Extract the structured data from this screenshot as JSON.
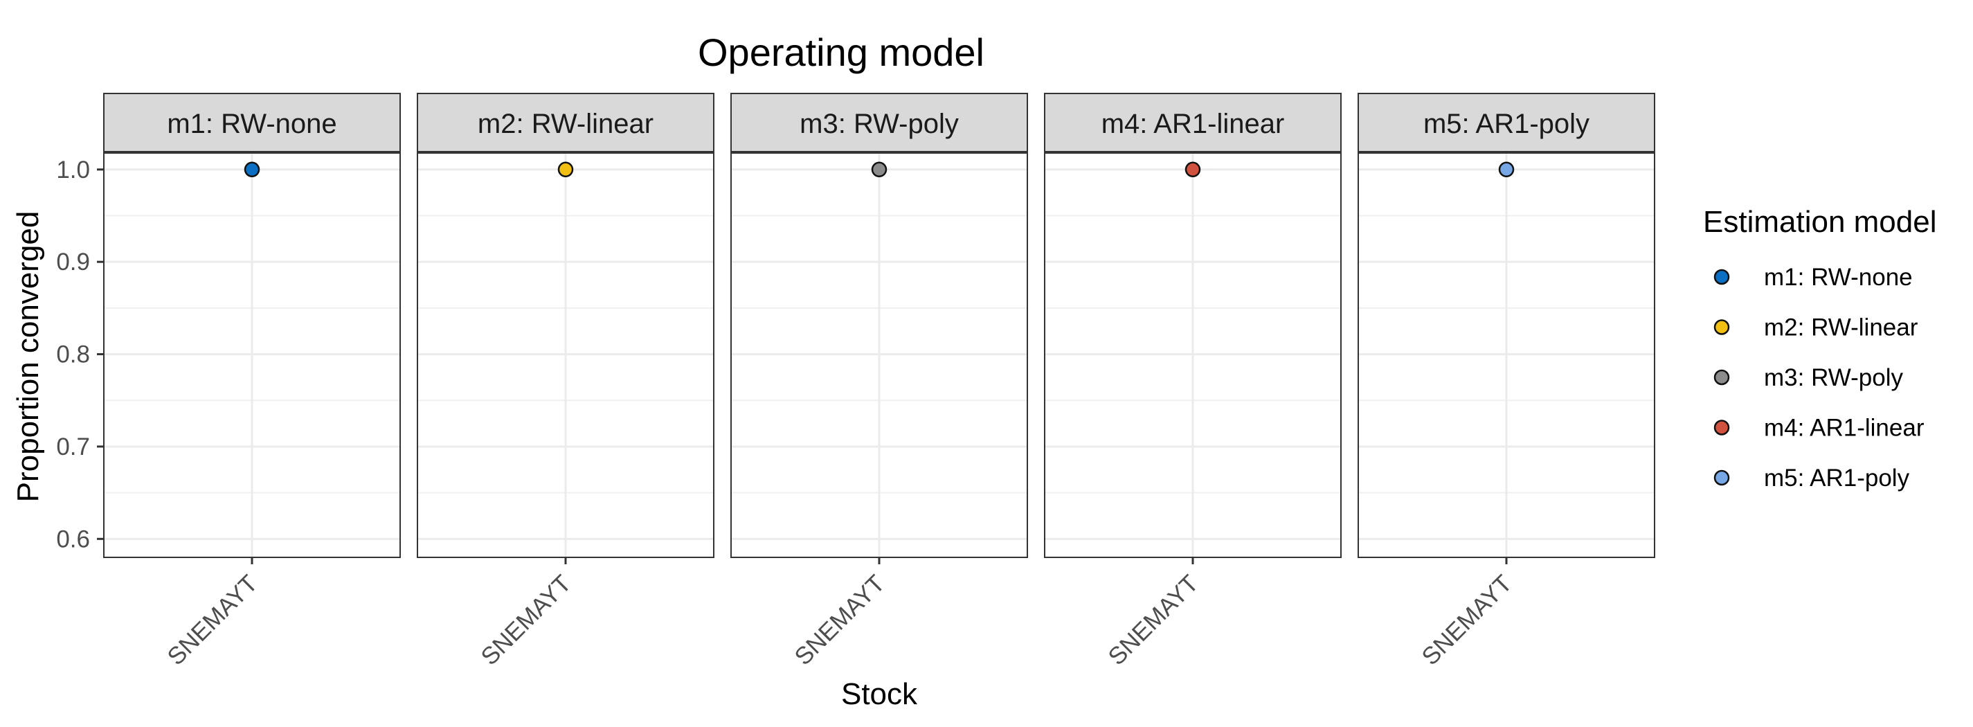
{
  "chart_data": {
    "type": "scatter",
    "title": "Operating model",
    "xlabel": "Stock",
    "ylabel": "Proportion converged",
    "ylim": [
      0.58,
      1.0186
    ],
    "y_ticks": [
      0.6,
      0.7,
      0.8,
      0.9,
      1.0
    ],
    "y_tick_labels": [
      "0.6",
      "0.7",
      "0.8",
      "0.9",
      "1.0"
    ],
    "y_minor_ticks": [
      0.65,
      0.75,
      0.85,
      0.95
    ],
    "categories": [
      "SNEMAYT"
    ],
    "grid": true,
    "legend": {
      "title": "Estimation model",
      "position": "right"
    },
    "facets": [
      {
        "strip": "m1:  RW-none",
        "series": [
          {
            "name": "m1: RW-none",
            "color": "#0b6fc4",
            "x": [
              "SNEMAYT"
            ],
            "y": [
              1.0
            ]
          }
        ]
      },
      {
        "strip": "m2:  RW-linear",
        "series": [
          {
            "name": "m2: RW-linear",
            "color": "#f2c012",
            "x": [
              "SNEMAYT"
            ],
            "y": [
              1.0
            ]
          }
        ]
      },
      {
        "strip": "m3:  RW-poly",
        "series": [
          {
            "name": "m3: RW-poly",
            "color": "#8c8c8c",
            "x": [
              "SNEMAYT"
            ],
            "y": [
              1.0
            ]
          }
        ]
      },
      {
        "strip": "m4:  AR1-linear",
        "series": [
          {
            "name": "m4: AR1-linear",
            "color": "#d1523f",
            "x": [
              "SNEMAYT"
            ],
            "y": [
              1.0
            ]
          }
        ]
      },
      {
        "strip": "m5:  AR1-poly",
        "series": [
          {
            "name": "m5: AR1-poly",
            "color": "#78a7e6",
            "x": [
              "SNEMAYT"
            ],
            "y": [
              1.0
            ]
          }
        ]
      }
    ],
    "legend_items": [
      {
        "label": "m1: RW-none",
        "color": "#0b6fc4"
      },
      {
        "label": "m2: RW-linear",
        "color": "#f2c012"
      },
      {
        "label": "m3: RW-poly",
        "color": "#8c8c8c"
      },
      {
        "label": "m4: AR1-linear",
        "color": "#d1523f"
      },
      {
        "label": "m5: AR1-poly",
        "color": "#78a7e6"
      }
    ]
  }
}
